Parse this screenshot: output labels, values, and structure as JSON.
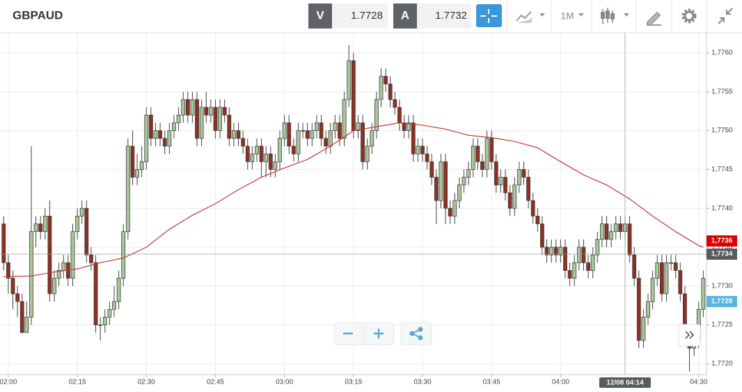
{
  "header": {
    "symbol": "GBPAUD",
    "bid_label": "V",
    "bid": "1.7728",
    "ask_label": "A",
    "ask": "1.7732",
    "timeframe": "1M"
  },
  "chart_data": {
    "type": "candlestick",
    "up_color": "#a8c79a",
    "down_color": "#8e3023",
    "outline_color": "#3d3d3d",
    "open": [
      1.7738,
      1.7733,
      1.7731,
      1.7729,
      1.7728,
      1.7724,
      1.7726,
      1.7737,
      1.7738,
      1.7737,
      1.7739,
      1.7729,
      1.7731,
      1.7732,
      1.7733,
      1.7731,
      1.7737,
      1.7739,
      1.774,
      1.7734,
      1.7733,
      1.7725,
      1.7725,
      1.7726,
      1.7727,
      1.7728,
      1.7731,
      1.7737,
      1.7748,
      1.7744,
      1.7745,
      1.7746,
      1.7752,
      1.7749,
      1.775,
      1.7749,
      1.7748,
      1.775,
      1.7751,
      1.7752,
      1.7754,
      1.7752,
      1.7754,
      1.7749,
      1.7753,
      1.7752,
      1.7753,
      1.775,
      1.7753,
      1.7752,
      1.7749,
      1.775,
      1.7749,
      1.7748,
      1.7746,
      1.7747,
      1.7748,
      1.7746,
      1.7747,
      1.7745,
      1.7746,
      1.7749,
      1.7751,
      1.7748,
      1.7747,
      1.775,
      1.775,
      1.7749,
      1.775,
      1.7751,
      1.7749,
      1.7748,
      1.775,
      1.7751,
      1.7749,
      1.7754,
      1.7759,
      1.775,
      1.7751,
      1.7746,
      1.7748,
      1.775,
      1.7754,
      1.7757,
      1.7756,
      1.7754,
      1.7753,
      1.7751,
      1.775,
      1.7751,
      1.7747,
      1.7748,
      1.7747,
      1.7746,
      1.7744,
      1.7741,
      1.7746,
      1.774,
      1.7739,
      1.7741,
      1.7743,
      1.7744,
      1.7745,
      1.7748,
      1.7746,
      1.7745,
      1.7749,
      1.7746,
      1.7743,
      1.7744,
      1.7742,
      1.774,
      1.7743,
      1.7745,
      1.7744,
      1.7741,
      1.7739,
      1.7738,
      1.7735,
      1.7734,
      1.7735,
      1.7734,
      1.7735,
      1.7732,
      1.7731,
      1.7733,
      1.7735,
      1.7733,
      1.7732,
      1.7734,
      1.7736,
      1.7738,
      1.7736,
      1.7737,
      1.7738,
      1.7737,
      1.7738,
      1.7734,
      1.7731,
      1.7723,
      1.7726,
      1.7728,
      1.7731,
      1.7733,
      1.7729,
      1.7733,
      1.7733,
      1.7732,
      1.7729,
      1.7724,
      1.7722,
      1.7723,
      1.7727
    ],
    "high": [
      1.7739,
      1.7734,
      1.7732,
      1.773,
      1.7729,
      1.7728,
      1.7748,
      1.7739,
      1.7739,
      1.774,
      1.7741,
      1.7732,
      1.7733,
      1.7734,
      1.7734,
      1.7738,
      1.774,
      1.7741,
      1.7741,
      1.7735,
      1.7734,
      1.7726,
      1.7727,
      1.7728,
      1.773,
      1.7732,
      1.7738,
      1.7749,
      1.775,
      1.7747,
      1.7748,
      1.7753,
      1.7753,
      1.7751,
      1.7751,
      1.775,
      1.7751,
      1.7752,
      1.7753,
      1.7755,
      1.7755,
      1.7755,
      1.7755,
      1.7754,
      1.7755,
      1.7754,
      1.7754,
      1.7754,
      1.7754,
      1.7753,
      1.7751,
      1.7751,
      1.775,
      1.7749,
      1.7748,
      1.7749,
      1.7749,
      1.7748,
      1.7748,
      1.7747,
      1.775,
      1.7752,
      1.7752,
      1.7749,
      1.7751,
      1.7751,
      1.7751,
      1.7751,
      1.7752,
      1.7752,
      1.775,
      1.7751,
      1.7752,
      1.7752,
      1.7755,
      1.7761,
      1.776,
      1.7752,
      1.7752,
      1.7749,
      1.7751,
      1.7755,
      1.7758,
      1.7758,
      1.7757,
      1.7755,
      1.7754,
      1.7752,
      1.7752,
      1.7752,
      1.7749,
      1.7749,
      1.7748,
      1.7747,
      1.7745,
      1.7747,
      1.7747,
      1.7741,
      1.7742,
      1.7744,
      1.7745,
      1.7746,
      1.7749,
      1.7749,
      1.7747,
      1.775,
      1.775,
      1.7747,
      1.7745,
      1.7745,
      1.7743,
      1.7744,
      1.7746,
      1.7746,
      1.7745,
      1.7742,
      1.774,
      1.7739,
      1.7736,
      1.7736,
      1.7736,
      1.7736,
      1.7736,
      1.7733,
      1.7734,
      1.7736,
      1.7736,
      1.7734,
      1.7735,
      1.7737,
      1.7739,
      1.7739,
      1.7738,
      1.7739,
      1.7739,
      1.7739,
      1.7739,
      1.7735,
      1.7732,
      1.7727,
      1.7729,
      1.7732,
      1.7734,
      1.7734,
      1.7734,
      1.7734,
      1.7734,
      1.7733,
      1.773,
      1.7725,
      1.7724,
      1.7728,
      1.7732
    ],
    "low": [
      1.7732,
      1.7729,
      1.7727,
      1.7726,
      1.7724,
      1.7724,
      1.7725,
      1.7735,
      1.7736,
      1.7736,
      1.7728,
      1.7728,
      1.773,
      1.7731,
      1.773,
      1.773,
      1.7736,
      1.7738,
      1.7733,
      1.7732,
      1.7724,
      1.7723,
      1.7724,
      1.7725,
      1.7726,
      1.7727,
      1.773,
      1.7736,
      1.7743,
      1.7743,
      1.7744,
      1.7745,
      1.7748,
      1.7748,
      1.7748,
      1.7747,
      1.7747,
      1.7749,
      1.775,
      1.7751,
      1.7751,
      1.7751,
      1.7748,
      1.7748,
      1.7751,
      1.7751,
      1.7749,
      1.7749,
      1.7751,
      1.7748,
      1.7748,
      1.7748,
      1.7747,
      1.7745,
      1.7745,
      1.7746,
      1.7744,
      1.7744,
      1.7744,
      1.7744,
      1.7745,
      1.7748,
      1.7747,
      1.7746,
      1.7746,
      1.7749,
      1.7748,
      1.7748,
      1.7749,
      1.7748,
      1.7747,
      1.7747,
      1.7749,
      1.7748,
      1.7748,
      1.7753,
      1.7749,
      1.7749,
      1.7745,
      1.7745,
      1.7747,
      1.7749,
      1.7753,
      1.7755,
      1.7753,
      1.7752,
      1.775,
      1.7749,
      1.7749,
      1.7746,
      1.7746,
      1.7746,
      1.7745,
      1.7743,
      1.7738,
      1.774,
      1.7738,
      1.7738,
      1.7738,
      1.774,
      1.7742,
      1.7743,
      1.7744,
      1.7745,
      1.7744,
      1.7744,
      1.7745,
      1.7742,
      1.7742,
      1.7741,
      1.7739,
      1.7739,
      1.7742,
      1.7743,
      1.774,
      1.7738,
      1.7737,
      1.7734,
      1.7733,
      1.7733,
      1.7733,
      1.7733,
      1.7731,
      1.773,
      1.773,
      1.7732,
      1.7732,
      1.7731,
      1.7731,
      1.7733,
      1.7735,
      1.7735,
      1.7735,
      1.7736,
      1.7736,
      1.7736,
      1.7733,
      1.773,
      1.7722,
      1.7722,
      1.7725,
      1.7727,
      1.773,
      1.7728,
      1.7728,
      1.7732,
      1.7731,
      1.7728,
      1.7723,
      1.7719,
      1.7721,
      1.7722,
      1.7726
    ],
    "close": [
      1.7733,
      1.7731,
      1.7729,
      1.7728,
      1.7724,
      1.7726,
      1.7737,
      1.7738,
      1.7737,
      1.7739,
      1.7729,
      1.7731,
      1.7732,
      1.7733,
      1.7731,
      1.7737,
      1.7739,
      1.774,
      1.7734,
      1.7733,
      1.7725,
      1.7725,
      1.7726,
      1.7727,
      1.7728,
      1.7731,
      1.7737,
      1.7748,
      1.7744,
      1.7745,
      1.7746,
      1.7752,
      1.7749,
      1.775,
      1.7749,
      1.7748,
      1.775,
      1.7751,
      1.7752,
      1.7754,
      1.7752,
      1.7754,
      1.7749,
      1.7753,
      1.7752,
      1.7753,
      1.775,
      1.7753,
      1.7752,
      1.7749,
      1.775,
      1.7749,
      1.7748,
      1.7746,
      1.7747,
      1.7748,
      1.7746,
      1.7747,
      1.7745,
      1.7746,
      1.7749,
      1.7751,
      1.7748,
      1.7747,
      1.775,
      1.775,
      1.7749,
      1.775,
      1.7751,
      1.7749,
      1.7748,
      1.775,
      1.7751,
      1.7749,
      1.7754,
      1.7759,
      1.775,
      1.7751,
      1.7746,
      1.7748,
      1.775,
      1.7754,
      1.7757,
      1.7756,
      1.7754,
      1.7753,
      1.7751,
      1.775,
      1.7751,
      1.7747,
      1.7748,
      1.7747,
      1.7746,
      1.7744,
      1.7741,
      1.7746,
      1.774,
      1.7739,
      1.7741,
      1.7743,
      1.7744,
      1.7745,
      1.7748,
      1.7746,
      1.7745,
      1.7749,
      1.7746,
      1.7743,
      1.7744,
      1.7742,
      1.774,
      1.7743,
      1.7745,
      1.7744,
      1.7741,
      1.7739,
      1.7738,
      1.7735,
      1.7734,
      1.7735,
      1.7734,
      1.7735,
      1.7732,
      1.7731,
      1.7733,
      1.7735,
      1.7733,
      1.7732,
      1.7734,
      1.7736,
      1.7738,
      1.7736,
      1.7737,
      1.7738,
      1.7737,
      1.7738,
      1.7734,
      1.7731,
      1.7723,
      1.7726,
      1.7728,
      1.7731,
      1.7733,
      1.7729,
      1.7733,
      1.7733,
      1.7732,
      1.7729,
      1.7724,
      1.7722,
      1.7723,
      1.7727,
      1.7731
    ],
    "moving_average": {
      "color": "#c8362e",
      "x": [
        0,
        1,
        6,
        11,
        16,
        21,
        26,
        31,
        36,
        41,
        46,
        51,
        56,
        61,
        66,
        71,
        76,
        81,
        86,
        91,
        96,
        101,
        106,
        111,
        116,
        121,
        126,
        131,
        136,
        141,
        146,
        151,
        152
      ],
      "values": [
        1.77312,
        1.77312,
        1.77313,
        1.77318,
        1.77322,
        1.7733,
        1.77336,
        1.7735,
        1.77373,
        1.77391,
        1.77406,
        1.77424,
        1.7744,
        1.77452,
        1.77463,
        1.7748,
        1.775,
        1.77505,
        1.7751,
        1.77507,
        1.77502,
        1.77494,
        1.77491,
        1.77486,
        1.77478,
        1.7746,
        1.77443,
        1.7743,
        1.77412,
        1.7739,
        1.7737,
        1.77352,
        1.7735
      ]
    },
    "xlim": [
      -0.8,
      152.7
    ],
    "xticks": [
      {
        "value": 1,
        "label": "02:00"
      },
      {
        "value": 16,
        "label": "02:15"
      },
      {
        "value": 31,
        "label": "02:30"
      },
      {
        "value": 46,
        "label": "02:45"
      },
      {
        "value": 61,
        "label": "03:00"
      },
      {
        "value": 76,
        "label": "03:15"
      },
      {
        "value": 91,
        "label": "03:30"
      },
      {
        "value": 106,
        "label": "03:45"
      },
      {
        "value": 121,
        "label": "04:00"
      },
      {
        "value": 151,
        "label": "04:30"
      }
    ],
    "ylim": [
      1.77186,
      1.77626
    ],
    "yticks": [
      {
        "value": 1.772,
        "label": "1,7720"
      },
      {
        "value": 1.7725,
        "label": "1,7725"
      },
      {
        "value": 1.773,
        "label": "1,7730"
      },
      {
        "value": 1.7735,
        "label": "1,7735"
      },
      {
        "value": 1.774,
        "label": "1,7740"
      },
      {
        "value": 1.7745,
        "label": "1,7745"
      },
      {
        "value": 1.775,
        "label": "1,7750"
      },
      {
        "value": 1.7755,
        "label": "1,7755"
      },
      {
        "value": 1.776,
        "label": "1,7760"
      }
    ],
    "grid": true,
    "price_labels": [
      {
        "value": 1.77358,
        "label": "1,7736",
        "color": "#e00000"
      },
      {
        "value": 1.77341,
        "label": "1,7734",
        "color": "#555b61"
      },
      {
        "value": 1.7728,
        "label": "1,7728",
        "color": "#5ab4dc"
      }
    ],
    "crosshair": {
      "x": 135,
      "y": 1.77341,
      "label": "12/08 04:14"
    }
  }
}
